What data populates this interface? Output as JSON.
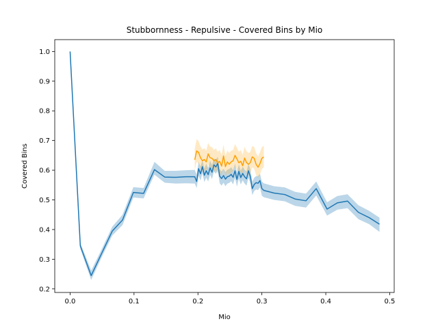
{
  "chart_data": {
    "type": "line",
    "title": "Stubbornness - Repulsive - Covered Bins by Mio",
    "xlabel": "Mio",
    "ylabel": "Covered Bins",
    "xlim": [
      -0.024,
      0.507
    ],
    "ylim": [
      0.188,
      1.04
    ],
    "xticks": [
      0.0,
      0.1,
      0.2,
      0.3,
      0.4,
      0.5
    ],
    "xtick_labels": [
      "0.0",
      "0.1",
      "0.2",
      "0.3",
      "0.4",
      "0.5"
    ],
    "yticks": [
      0.2,
      0.3,
      0.4,
      0.5,
      0.6,
      0.7,
      0.8,
      0.9,
      1.0
    ],
    "ytick_labels": [
      "0.2",
      "0.3",
      "0.4",
      "0.5",
      "0.6",
      "0.7",
      "0.8",
      "0.9",
      "1.0"
    ],
    "grid": false,
    "legend": "none",
    "series": [
      {
        "color": "#1f77b4",
        "band_color": "#1f77b4",
        "x": [
          0.0,
          0.016,
          0.033,
          0.049,
          0.066,
          0.082,
          0.099,
          0.115,
          0.132,
          0.148,
          0.165,
          0.181,
          0.195,
          0.198,
          0.201,
          0.204,
          0.207,
          0.21,
          0.213,
          0.216,
          0.219,
          0.222,
          0.225,
          0.228,
          0.231,
          0.234,
          0.237,
          0.24,
          0.243,
          0.246,
          0.249,
          0.252,
          0.255,
          0.258,
          0.261,
          0.264,
          0.267,
          0.27,
          0.273,
          0.276,
          0.279,
          0.282,
          0.285,
          0.288,
          0.291,
          0.294,
          0.297,
          0.3,
          0.303,
          0.319,
          0.336,
          0.352,
          0.369,
          0.385,
          0.402,
          0.418,
          0.434,
          0.451,
          0.468,
          0.484
        ],
        "y": [
          1.0,
          0.345,
          0.245,
          0.318,
          0.395,
          0.432,
          0.525,
          0.522,
          0.602,
          0.577,
          0.576,
          0.578,
          0.578,
          0.562,
          0.605,
          0.588,
          0.612,
          0.583,
          0.598,
          0.585,
          0.608,
          0.593,
          0.618,
          0.611,
          0.623,
          0.58,
          0.572,
          0.582,
          0.57,
          0.578,
          0.58,
          0.586,
          0.576,
          0.598,
          0.569,
          0.596,
          0.575,
          0.589,
          0.578,
          0.571,
          0.598,
          0.578,
          0.538,
          0.552,
          0.558,
          0.556,
          0.565,
          0.538,
          0.532,
          0.523,
          0.518,
          0.503,
          0.497,
          0.538,
          0.469,
          0.49,
          0.496,
          0.458,
          0.44,
          0.418
        ],
        "lower": [
          1.0,
          0.335,
          0.23,
          0.305,
          0.38,
          0.415,
          0.508,
          0.505,
          0.585,
          0.558,
          0.555,
          0.556,
          0.555,
          0.54,
          0.582,
          0.565,
          0.59,
          0.56,
          0.575,
          0.562,
          0.585,
          0.57,
          0.596,
          0.588,
          0.6,
          0.556,
          0.548,
          0.558,
          0.546,
          0.555,
          0.557,
          0.563,
          0.552,
          0.575,
          0.545,
          0.572,
          0.552,
          0.566,
          0.555,
          0.548,
          0.575,
          0.555,
          0.516,
          0.53,
          0.535,
          0.533,
          0.542,
          0.514,
          0.509,
          0.5,
          0.495,
          0.48,
          0.474,
          0.515,
          0.447,
          0.467,
          0.472,
          0.435,
          0.418,
          0.392
        ],
        "upper": [
          1.0,
          0.355,
          0.262,
          0.332,
          0.41,
          0.45,
          0.543,
          0.54,
          0.628,
          0.598,
          0.598,
          0.6,
          0.601,
          0.585,
          0.628,
          0.612,
          0.634,
          0.606,
          0.622,
          0.608,
          0.632,
          0.617,
          0.64,
          0.634,
          0.646,
          0.604,
          0.596,
          0.606,
          0.594,
          0.602,
          0.604,
          0.61,
          0.6,
          0.622,
          0.593,
          0.62,
          0.598,
          0.612,
          0.602,
          0.595,
          0.622,
          0.602,
          0.561,
          0.575,
          0.58,
          0.58,
          0.588,
          0.562,
          0.556,
          0.546,
          0.542,
          0.527,
          0.521,
          0.562,
          0.492,
          0.513,
          0.519,
          0.482,
          0.463,
          0.44
        ]
      },
      {
        "color": "#ff9f00",
        "band_color": "#ffb73d",
        "x": [
          0.195,
          0.198,
          0.201,
          0.204,
          0.207,
          0.21,
          0.213,
          0.216,
          0.219,
          0.222,
          0.225,
          0.228,
          0.231,
          0.234,
          0.237,
          0.24,
          0.243,
          0.246,
          0.249,
          0.252,
          0.255,
          0.258,
          0.261,
          0.264,
          0.267,
          0.27,
          0.273,
          0.276,
          0.279,
          0.282,
          0.285,
          0.288,
          0.291,
          0.294,
          0.297,
          0.3,
          0.303
        ],
        "y": [
          0.635,
          0.665,
          0.66,
          0.642,
          0.632,
          0.636,
          0.628,
          0.655,
          0.642,
          0.64,
          0.632,
          0.636,
          0.625,
          0.63,
          0.614,
          0.648,
          0.612,
          0.628,
          0.62,
          0.628,
          0.632,
          0.65,
          0.638,
          0.625,
          0.63,
          0.615,
          0.641,
          0.626,
          0.62,
          0.626,
          0.645,
          0.64,
          0.62,
          0.61,
          0.622,
          0.64,
          0.645
        ],
        "lower": [
          0.6,
          0.628,
          0.623,
          0.606,
          0.596,
          0.6,
          0.592,
          0.62,
          0.606,
          0.604,
          0.596,
          0.6,
          0.59,
          0.594,
          0.578,
          0.612,
          0.576,
          0.592,
          0.584,
          0.592,
          0.596,
          0.614,
          0.602,
          0.59,
          0.594,
          0.58,
          0.605,
          0.59,
          0.584,
          0.59,
          0.61,
          0.604,
          0.584,
          0.575,
          0.586,
          0.604,
          0.61
        ],
        "upper": [
          0.672,
          0.705,
          0.698,
          0.68,
          0.67,
          0.674,
          0.666,
          0.692,
          0.68,
          0.678,
          0.668,
          0.674,
          0.662,
          0.668,
          0.652,
          0.686,
          0.65,
          0.666,
          0.658,
          0.666,
          0.668,
          0.688,
          0.676,
          0.662,
          0.668,
          0.652,
          0.679,
          0.664,
          0.658,
          0.662,
          0.682,
          0.678,
          0.658,
          0.646,
          0.66,
          0.678,
          0.682
        ]
      }
    ]
  }
}
